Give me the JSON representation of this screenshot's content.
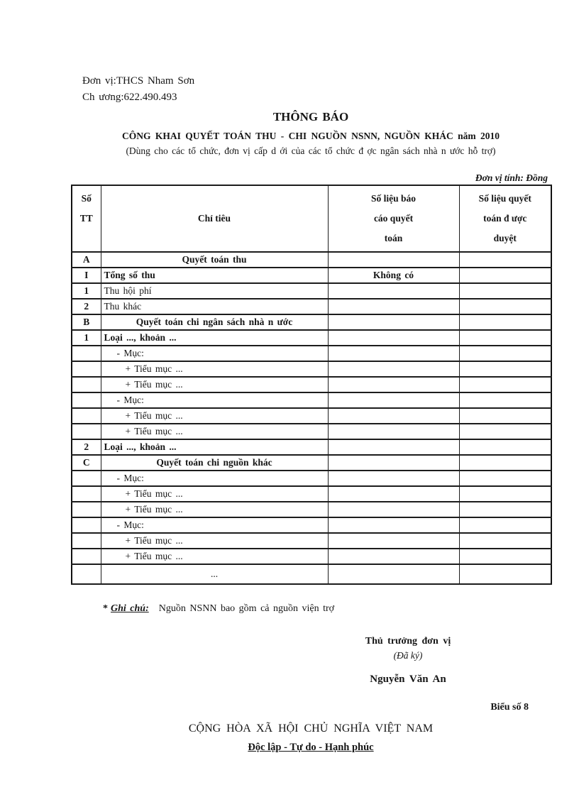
{
  "top": {
    "unit_label": "Đơn vị:THCS Nham Sơn",
    "chapter_label": "Ch ương:622.490.493"
  },
  "heading": {
    "title": "THÔNG BÁO",
    "subtitle": "CÔNG KHAI QUYẾT TOÁN THU - CHI NGUỒN NSNN, NGUỒN KHÁC năm 2010",
    "scope_note": "(Dùng cho các tổ chức, đơn vị cấp d ới của các tổ chức đ ợc ngân sách nhà n ước hỗ trợ)",
    "unit_of_measure": "Đơn vị tính: Đồng"
  },
  "table": {
    "headers": [
      "Số\nTT",
      "Chỉ tiêu",
      "Số liệu báo\ncáo quyết\ntoán",
      "Số liệu quyết\ntoán đ ược\nduyệt"
    ],
    "rows": [
      {
        "no": "A",
        "label": "Quyết toán thu",
        "report": "",
        "approved": "",
        "style": "section"
      },
      {
        "no": "I",
        "label": "Tổng số thu",
        "report": "Không có",
        "approved": "",
        "style": "bold"
      },
      {
        "no": "1",
        "label": "Thu hội phí",
        "report": "",
        "approved": "",
        "style": "normal"
      },
      {
        "no": "2",
        "label": "Thu khác",
        "report": "",
        "approved": "",
        "style": "normal"
      },
      {
        "no": "B",
        "label": "Quyết toán chi ngân sách nhà n ước",
        "report": "",
        "approved": "",
        "style": "section"
      },
      {
        "no": "1",
        "label": "Loại ..., khoản ...",
        "report": "",
        "approved": "",
        "style": "bold"
      },
      {
        "no": "",
        "label": "- Mục:",
        "report": "",
        "approved": "",
        "style": "indent1"
      },
      {
        "no": "",
        "label": "+ Tiểu mục ...",
        "report": "",
        "approved": "",
        "style": "indent2"
      },
      {
        "no": "",
        "label": "+ Tiểu mục ...",
        "report": "",
        "approved": "",
        "style": "indent2"
      },
      {
        "no": "",
        "label": "- Mục:",
        "report": "",
        "approved": "",
        "style": "indent1"
      },
      {
        "no": "",
        "label": "+ Tiểu mục ...",
        "report": "",
        "approved": "",
        "style": "indent2"
      },
      {
        "no": "",
        "label": "+ Tiểu mục ...",
        "report": "",
        "approved": "",
        "style": "indent2"
      },
      {
        "no": "2",
        "label": "Loại ..., khoản ...",
        "report": "",
        "approved": "",
        "style": "bold"
      },
      {
        "no": "C",
        "label": "Quyết toán chi nguồn khác",
        "report": "",
        "approved": "",
        "style": "section"
      },
      {
        "no": "",
        "label": "- Mục:",
        "report": "",
        "approved": "",
        "style": "indent1"
      },
      {
        "no": "",
        "label": "+ Tiểu mục ...",
        "report": "",
        "approved": "",
        "style": "indent2"
      },
      {
        "no": "",
        "label": "+ Tiểu mục ...",
        "report": "",
        "approved": "",
        "style": "indent2"
      },
      {
        "no": "",
        "label": "- Mục:",
        "report": "",
        "approved": "",
        "style": "indent1"
      },
      {
        "no": "",
        "label": "+ Tiểu mục ...",
        "report": "",
        "approved": "",
        "style": "indent2"
      },
      {
        "no": "",
        "label": "+ Tiểu mục ...",
        "report": "",
        "approved": "",
        "style": "indent2"
      },
      {
        "no": "",
        "label": "...",
        "report": "",
        "approved": "",
        "style": "dots"
      }
    ]
  },
  "note": {
    "marker": "*",
    "label": "Ghi chú:",
    "text": "Nguồn NSNN bao gồm cả nguồn viện trợ"
  },
  "signature": {
    "role": "Thủ trưởng đơn vị",
    "signed_note": "(Đã ký)",
    "name": "Nguyễn Văn An"
  },
  "footer": {
    "form_number": "Biểu số 8",
    "motto_line1": "CỘNG HÒA XÃ HỘI CHỦ NGHĨA VIỆT NAM",
    "motto_line2": "Độc lập - Tự do - Hạnh phúc"
  },
  "colors": {
    "text": "#151515",
    "border": "#1c1c1c",
    "background": "#ffffff"
  }
}
